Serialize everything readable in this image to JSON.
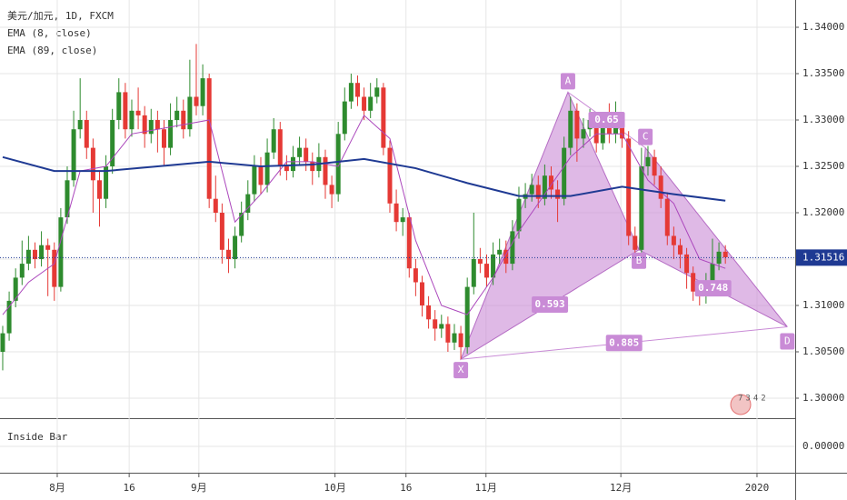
{
  "chart_data": {
    "type": "candlestick",
    "title": "美元/加元, 1D, FXCM",
    "up_color": "#2e8b2e",
    "down_color": "#e53935",
    "xlim": [
      -0.42,
      122.82
    ],
    "xticks": [
      {
        "value": 8.45,
        "label": "8月"
      },
      {
        "value": 19.6,
        "label": "16"
      },
      {
        "value": 30.4,
        "label": "9月"
      },
      {
        "value": 51.5,
        "label": "10月"
      },
      {
        "value": 62.5,
        "label": "16"
      },
      {
        "value": 74.9,
        "label": "11月"
      },
      {
        "value": 95.8,
        "label": "12月"
      },
      {
        "value": 116.9,
        "label": "2020"
      }
    ],
    "ylim": [
      1.29922,
      1.34265
    ],
    "yticks": [
      {
        "value": 1.3,
        "label": "1.30000"
      },
      {
        "value": 1.305,
        "label": "1.30500"
      },
      {
        "value": 1.31,
        "label": "1.31000"
      },
      {
        "value": 1.315,
        "label": "1.31500"
      },
      {
        "value": 1.32,
        "label": "1.32000"
      },
      {
        "value": 1.325,
        "label": "1.32500"
      },
      {
        "value": 1.33,
        "label": "1.33000"
      },
      {
        "value": 1.335,
        "label": "1.33500"
      },
      {
        "value": 1.34,
        "label": "1.34000"
      }
    ],
    "grid": true,
    "open": [
      1.305,
      1.307,
      1.3105,
      1.313,
      1.3145,
      1.316,
      1.315,
      1.3165,
      1.316,
      1.312,
      1.3195,
      1.3235,
      1.329,
      1.33,
      1.327,
      1.3235,
      1.3215,
      1.325,
      1.33,
      1.333,
      1.329,
      1.331,
      1.3305,
      1.3285,
      1.33,
      1.329,
      1.327,
      1.33,
      1.331,
      1.329,
      1.3325,
      1.3315,
      1.3345,
      1.3215,
      1.32,
      1.316,
      1.315,
      1.3175,
      1.32,
      1.322,
      1.325,
      1.323,
      1.3265,
      1.329,
      1.325,
      1.3245,
      1.326,
      1.327,
      1.3255,
      1.3245,
      1.326,
      1.323,
      1.322,
      1.3285,
      1.332,
      1.334,
      1.3325,
      1.331,
      1.3325,
      1.3335,
      1.327,
      1.321,
      1.319,
      1.3195,
      1.314,
      1.3125,
      1.31,
      1.3085,
      1.3075,
      1.308,
      1.306,
      1.307,
      1.3055,
      1.312,
      1.315,
      1.3145,
      1.313,
      1.3155,
      1.316,
      1.3145,
      1.318,
      1.3215,
      1.322,
      1.323,
      1.3215,
      1.324,
      1.3225,
      1.3215,
      1.327,
      1.331,
      1.328,
      1.329,
      1.33,
      1.3275,
      1.3295,
      1.3285,
      1.33,
      1.328,
      1.3175,
      1.316,
      1.325,
      1.326,
      1.324,
      1.3215,
      1.3175,
      1.3165,
      1.3155,
      1.3135,
      1.3115,
      1.311,
      1.3125,
      1.3145,
      1.3158
    ],
    "high": [
      1.3078,
      1.3115,
      1.314,
      1.317,
      1.3175,
      1.3168,
      1.318,
      1.3172,
      1.3168,
      1.3205,
      1.325,
      1.331,
      1.3345,
      1.331,
      1.328,
      1.3245,
      1.3262,
      1.3312,
      1.3345,
      1.334,
      1.3322,
      1.3335,
      1.3315,
      1.3312,
      1.331,
      1.33,
      1.3318,
      1.3325,
      1.3322,
      1.3365,
      1.3382,
      1.336,
      1.335,
      1.324,
      1.321,
      1.3172,
      1.3185,
      1.3212,
      1.3235,
      1.3262,
      1.326,
      1.328,
      1.3302,
      1.3298,
      1.3262,
      1.3272,
      1.3282,
      1.328,
      1.3265,
      1.3275,
      1.3268,
      1.324,
      1.3298,
      1.3335,
      1.335,
      1.3348,
      1.3335,
      1.334,
      1.3345,
      1.334,
      1.3278,
      1.3225,
      1.3205,
      1.32,
      1.315,
      1.3132,
      1.311,
      1.3095,
      1.309,
      1.3088,
      1.308,
      1.3078,
      1.313,
      1.32,
      1.3162,
      1.3155,
      1.3168,
      1.3172,
      1.317,
      1.3192,
      1.3228,
      1.3232,
      1.3242,
      1.324,
      1.3252,
      1.325,
      1.3235,
      1.3282,
      1.3325,
      1.3318,
      1.3302,
      1.3312,
      1.3308,
      1.3305,
      1.3318,
      1.332,
      1.3308,
      1.3288,
      1.3185,
      1.327,
      1.3272,
      1.3268,
      1.325,
      1.3222,
      1.3185,
      1.3172,
      1.3162,
      1.3142,
      1.3125,
      1.3135,
      1.3172,
      1.3168,
      1.3165
    ],
    "low": [
      1.303,
      1.3062,
      1.3098,
      1.3122,
      1.3138,
      1.314,
      1.3142,
      1.311,
      1.3105,
      1.3115,
      1.3188,
      1.3228,
      1.328,
      1.3258,
      1.32,
      1.3185,
      1.3205,
      1.3242,
      1.329,
      1.328,
      1.3282,
      1.329,
      1.327,
      1.3275,
      1.3265,
      1.325,
      1.3262,
      1.3292,
      1.328,
      1.3282,
      1.3305,
      1.3305,
      1.3205,
      1.319,
      1.3145,
      1.3135,
      1.314,
      1.3168,
      1.3192,
      1.3212,
      1.322,
      1.3222,
      1.3258,
      1.324,
      1.3235,
      1.3238,
      1.3252,
      1.3245,
      1.323,
      1.3238,
      1.3215,
      1.3205,
      1.3212,
      1.3278,
      1.3312,
      1.3315,
      1.33,
      1.3302,
      1.3318,
      1.3262,
      1.32,
      1.318,
      1.3175,
      1.313,
      1.311,
      1.3088,
      1.3075,
      1.3062,
      1.3065,
      1.305,
      1.3052,
      1.3042,
      1.3048,
      1.3112,
      1.3135,
      1.312,
      1.3122,
      1.3145,
      1.3135,
      1.3138,
      1.3172,
      1.3205,
      1.3212,
      1.3205,
      1.3208,
      1.3215,
      1.319,
      1.3208,
      1.3262,
      1.3255,
      1.327,
      1.3282,
      1.3265,
      1.3268,
      1.3275,
      1.3275,
      1.327,
      1.3165,
      1.315,
      1.3155,
      1.324,
      1.323,
      1.3205,
      1.3165,
      1.315,
      1.314,
      1.3118,
      1.3105,
      1.31,
      1.3102,
      1.3118,
      1.3138,
      1.3145
    ],
    "close": [
      1.307,
      1.3105,
      1.313,
      1.3145,
      1.316,
      1.315,
      1.3165,
      1.316,
      1.312,
      1.3195,
      1.3235,
      1.329,
      1.33,
      1.327,
      1.3235,
      1.3215,
      1.325,
      1.33,
      1.333,
      1.329,
      1.331,
      1.3305,
      1.3285,
      1.33,
      1.329,
      1.327,
      1.33,
      1.331,
      1.329,
      1.3325,
      1.3315,
      1.3345,
      1.3215,
      1.32,
      1.316,
      1.315,
      1.3175,
      1.32,
      1.322,
      1.325,
      1.323,
      1.3265,
      1.329,
      1.325,
      1.3245,
      1.326,
      1.327,
      1.3255,
      1.3245,
      1.326,
      1.323,
      1.322,
      1.3285,
      1.332,
      1.334,
      1.3325,
      1.331,
      1.3325,
      1.3335,
      1.327,
      1.321,
      1.319,
      1.3195,
      1.314,
      1.3125,
      1.31,
      1.3085,
      1.3075,
      1.308,
      1.306,
      1.307,
      1.3055,
      1.312,
      1.315,
      1.3145,
      1.313,
      1.3155,
      1.316,
      1.3145,
      1.318,
      1.3215,
      1.322,
      1.323,
      1.3215,
      1.324,
      1.3225,
      1.3215,
      1.327,
      1.331,
      1.328,
      1.329,
      1.33,
      1.3275,
      1.3295,
      1.3285,
      1.33,
      1.328,
      1.3175,
      1.316,
      1.325,
      1.326,
      1.324,
      1.3215,
      1.3175,
      1.3165,
      1.3155,
      1.3135,
      1.3115,
      1.311,
      1.3125,
      1.3145,
      1.3158,
      1.3152
    ],
    "series": [
      {
        "name": "EMA (8, close)",
        "color": "#ab47bc",
        "x": [
          0,
          4,
          8,
          12,
          16,
          20,
          24,
          28,
          32,
          36,
          40,
          44,
          48,
          52,
          56,
          60,
          64,
          68,
          72,
          76,
          80,
          84,
          88,
          92,
          96,
          100,
          104,
          108,
          112
        ],
        "values": [
          1.309,
          1.3125,
          1.3145,
          1.3245,
          1.325,
          1.3285,
          1.329,
          1.3295,
          1.33,
          1.319,
          1.322,
          1.3255,
          1.3255,
          1.325,
          1.3305,
          1.328,
          1.317,
          1.31,
          1.309,
          1.313,
          1.318,
          1.322,
          1.326,
          1.3285,
          1.3285,
          1.3235,
          1.321,
          1.315,
          1.314
        ]
      },
      {
        "name": "EMA (89, close)",
        "color": "#1f3a93",
        "x": [
          0,
          8,
          16,
          24,
          32,
          40,
          48,
          56,
          64,
          72,
          80,
          88,
          96,
          104,
          112
        ],
        "values": [
          1.326,
          1.3245,
          1.3245,
          1.325,
          1.3255,
          1.325,
          1.3252,
          1.3258,
          1.3248,
          1.3232,
          1.3218,
          1.3218,
          1.3228,
          1.322,
          1.3213
        ]
      }
    ],
    "last_price": {
      "value": 1.31516,
      "label": "1.31516"
    },
    "pattern": {
      "points": [
        {
          "label": "X",
          "x": 71,
          "y": 1.3042
        },
        {
          "label": "A",
          "x": 87.6,
          "y": 1.333
        },
        {
          "label": "B",
          "x": 98.6,
          "y": 1.316
        },
        {
          "label": "C",
          "x": 99.6,
          "y": 1.327
        },
        {
          "label": "D",
          "x": 121.6,
          "y": 1.3077
        }
      ],
      "ratios": [
        "0.593",
        "0.65",
        "0.748",
        "0.885"
      ]
    },
    "indicator": {
      "title": "Inside Bar",
      "yticks": [
        {
          "value": 0,
          "label": "0.00000"
        }
      ]
    },
    "watermark": "7342"
  }
}
